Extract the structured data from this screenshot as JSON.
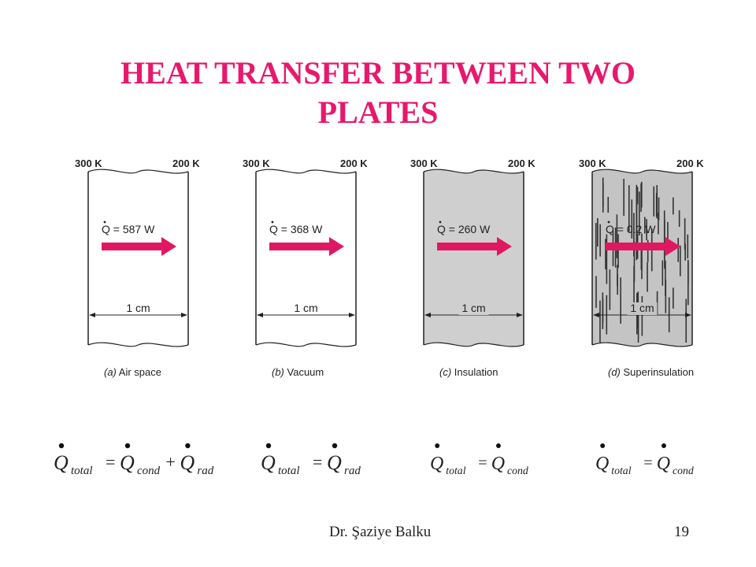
{
  "title": {
    "line1": "HEAT TRANSFER BETWEEN TWO",
    "line2": "PLATES"
  },
  "colors": {
    "title": "#e8186d",
    "arrow": "#e01862",
    "insulation_fill": "#cfcfcf",
    "superinsulation_fill": "#c4c4c4"
  },
  "panels": [
    {
      "hot": "300 K",
      "cold": "200 K",
      "q_label": "Q = 587 W",
      "width": "1 cm",
      "letter": "(a)",
      "name": "Air space",
      "fill": "none"
    },
    {
      "hot": "300 K",
      "cold": "200 K",
      "q_label": "Q = 368 W",
      "width": "1 cm",
      "letter": "(b)",
      "name": "Vacuum",
      "fill": "none"
    },
    {
      "hot": "300 K",
      "cold": "200 K",
      "q_label": "Q = 260 W",
      "width": "1 cm",
      "letter": "(c)",
      "name": "Insulation",
      "fill": "solid"
    },
    {
      "hot": "300 K",
      "cold": "200 K",
      "q_label": "Q = 0.2 W",
      "width": "1 cm",
      "letter": "(d)",
      "name": "Superinsulation",
      "fill": "hatched"
    }
  ],
  "equations": [
    {
      "lhs": "Q",
      "lhs_sub": "total",
      "eq": "=",
      "terms": [
        {
          "sym": "Q",
          "sub": "cond"
        },
        {
          "op": "+"
        },
        {
          "sym": "Q",
          "sub": "rad"
        }
      ]
    },
    {
      "lhs": "Q",
      "lhs_sub": "total",
      "eq": "=",
      "terms": [
        {
          "sym": "Q",
          "sub": "rad"
        }
      ]
    },
    {
      "lhs": "Q",
      "lhs_sub": "total",
      "eq": "=",
      "terms": [
        {
          "sym": "Q",
          "sub": "cond"
        }
      ]
    },
    {
      "lhs": "Q",
      "lhs_sub": "total",
      "eq": "=",
      "terms": [
        {
          "sym": "Q",
          "sub": "cond"
        }
      ]
    }
  ],
  "footer": {
    "author": "Dr. Şaziye Balku",
    "page": "19"
  }
}
